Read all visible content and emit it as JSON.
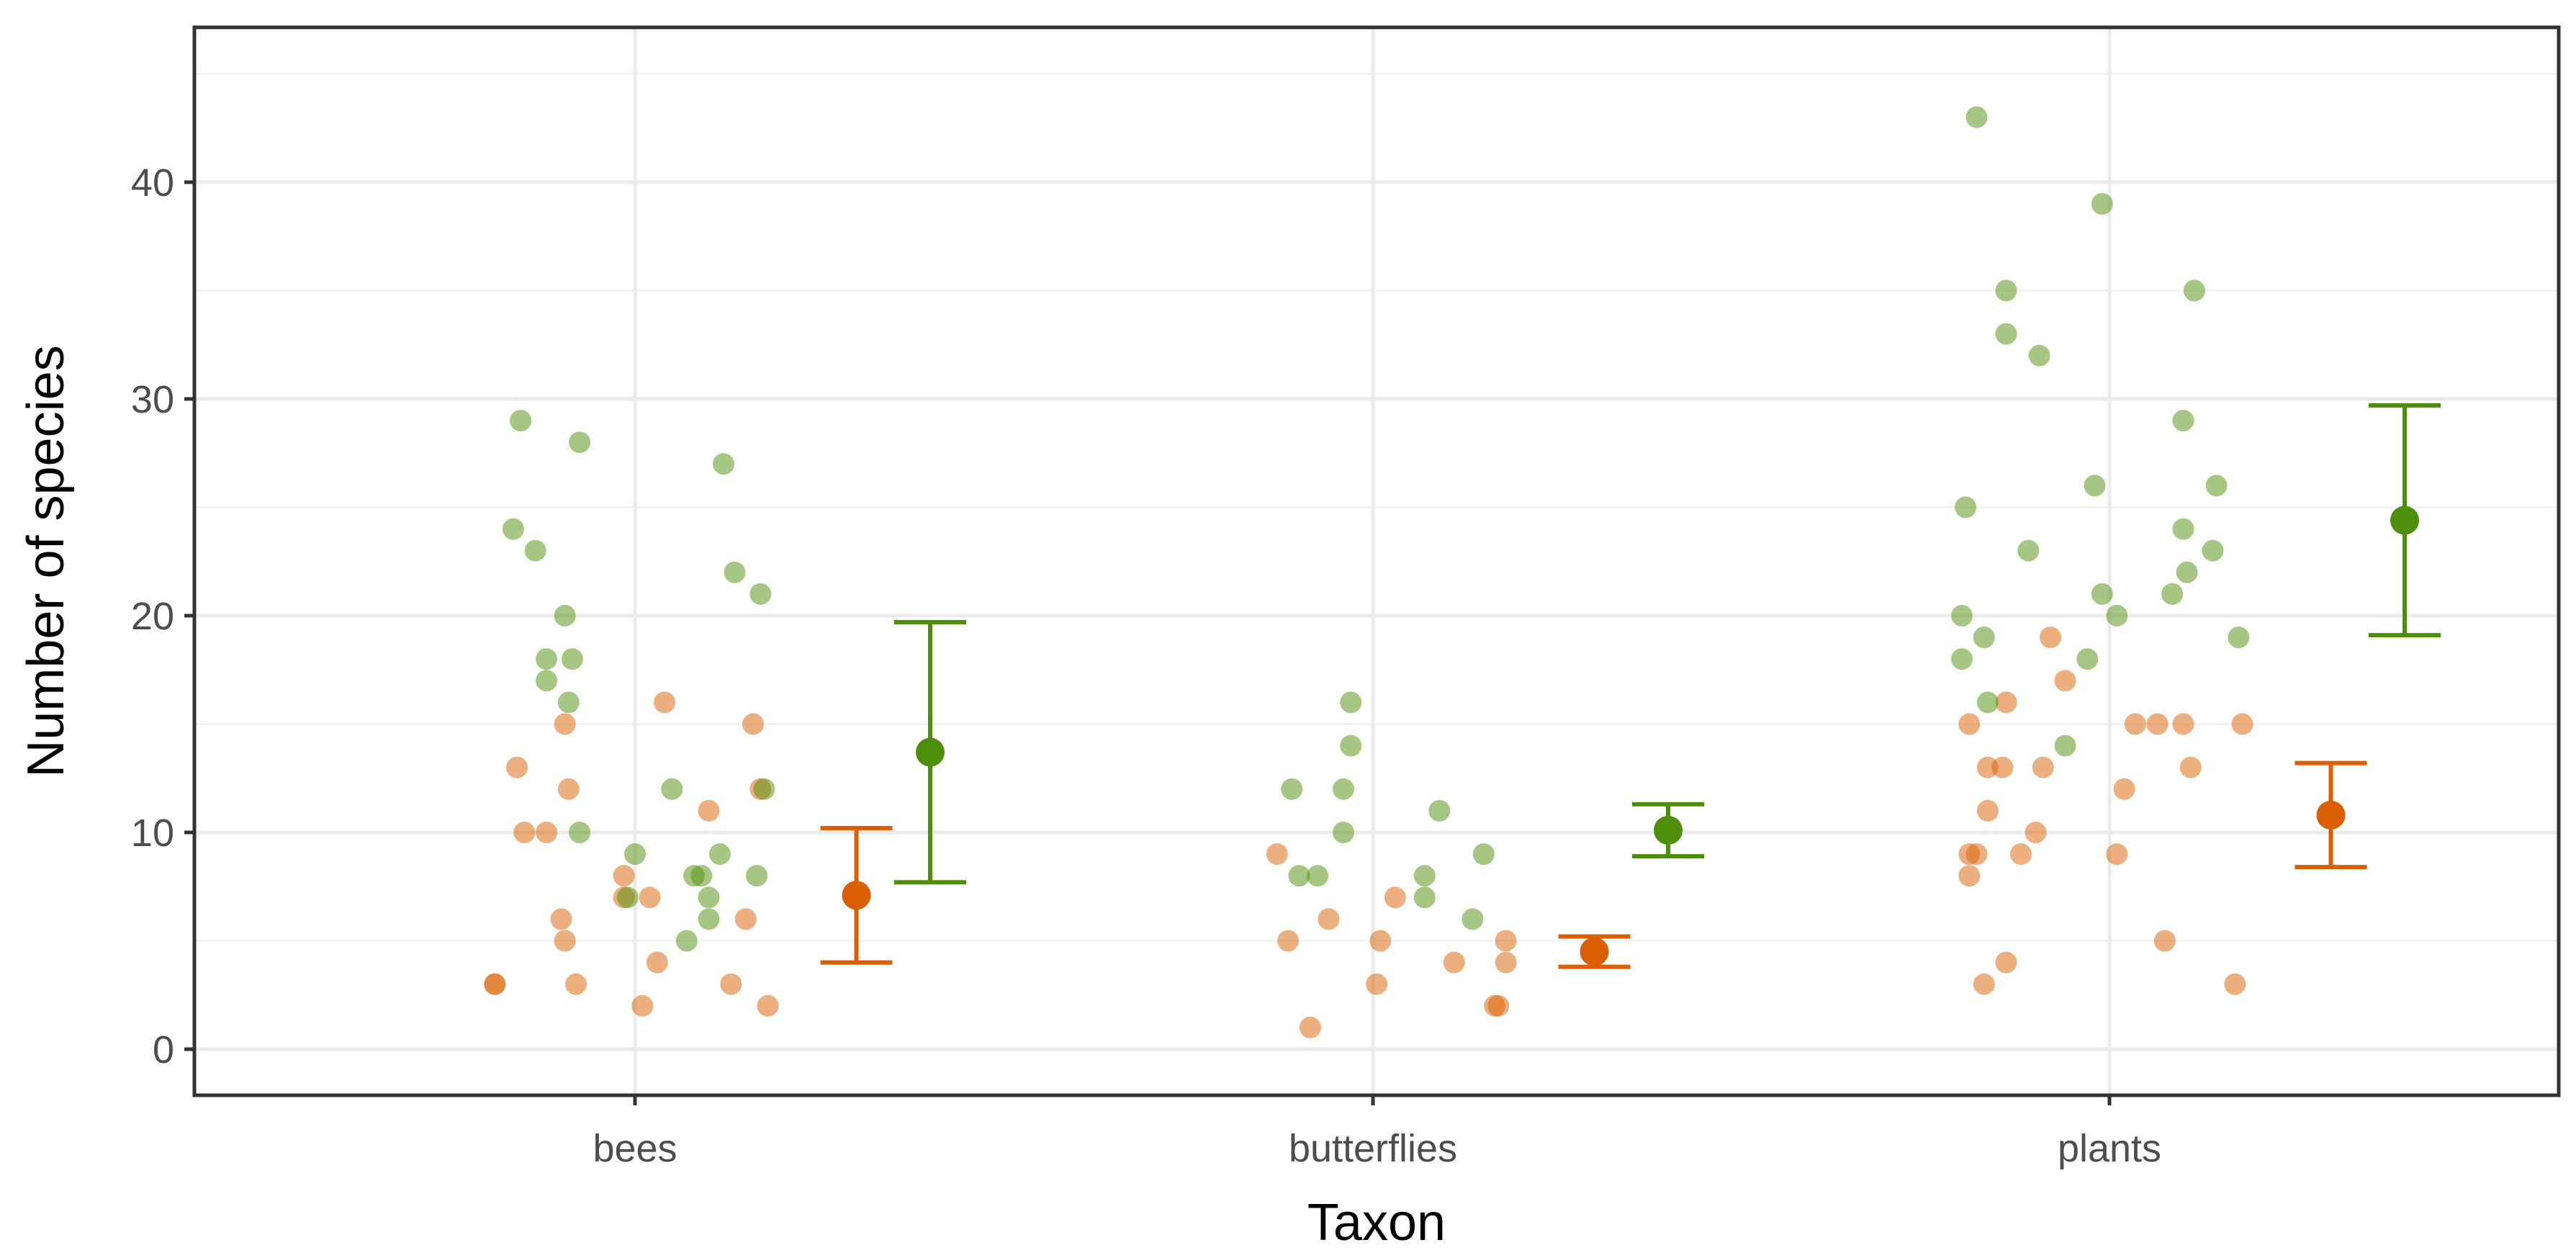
{
  "chart_data": {
    "type": "scatter",
    "title": "",
    "xlabel": "Taxon",
    "ylabel": "Number of species",
    "categories": [
      "bees",
      "butterflies",
      "plants"
    ],
    "ylim": [
      -2.3,
      47
    ],
    "yticks": [
      0,
      10,
      20,
      30,
      40
    ],
    "grid": true,
    "legend": "none",
    "colors": {
      "orange": "#d95f02",
      "green": "#4d8f0a"
    },
    "series": [
      {
        "name": "orange",
        "color": "#d95f02",
        "points": [
          {
            "category": "bees",
            "offset": -0.19,
            "y": 3
          },
          {
            "category": "bees",
            "offset": -0.19,
            "y": 3
          },
          {
            "category": "bees",
            "offset": -0.16,
            "y": 13
          },
          {
            "category": "bees",
            "offset": -0.15,
            "y": 10
          },
          {
            "category": "bees",
            "offset": -0.12,
            "y": 10
          },
          {
            "category": "bees",
            "offset": -0.1,
            "y": 6
          },
          {
            "category": "bees",
            "offset": -0.095,
            "y": 15
          },
          {
            "category": "bees",
            "offset": -0.095,
            "y": 5
          },
          {
            "category": "bees",
            "offset": -0.09,
            "y": 12
          },
          {
            "category": "bees",
            "offset": -0.08,
            "y": 3
          },
          {
            "category": "bees",
            "offset": -0.015,
            "y": 8
          },
          {
            "category": "bees",
            "offset": -0.015,
            "y": 7
          },
          {
            "category": "bees",
            "offset": 0.01,
            "y": 2
          },
          {
            "category": "bees",
            "offset": 0.02,
            "y": 7
          },
          {
            "category": "bees",
            "offset": 0.03,
            "y": 4
          },
          {
            "category": "bees",
            "offset": 0.04,
            "y": 16
          },
          {
            "category": "bees",
            "offset": 0.1,
            "y": 11
          },
          {
            "category": "bees",
            "offset": 0.13,
            "y": 3
          },
          {
            "category": "bees",
            "offset": 0.15,
            "y": 6
          },
          {
            "category": "bees",
            "offset": 0.16,
            "y": 15
          },
          {
            "category": "bees",
            "offset": 0.17,
            "y": 12
          },
          {
            "category": "bees",
            "offset": 0.18,
            "y": 2
          },
          {
            "category": "butterflies",
            "offset": -0.13,
            "y": 9
          },
          {
            "category": "butterflies",
            "offset": -0.115,
            "y": 5
          },
          {
            "category": "butterflies",
            "offset": -0.085,
            "y": 1
          },
          {
            "category": "butterflies",
            "offset": -0.06,
            "y": 6
          },
          {
            "category": "butterflies",
            "offset": 0.005,
            "y": 3
          },
          {
            "category": "butterflies",
            "offset": 0.01,
            "y": 5
          },
          {
            "category": "butterflies",
            "offset": 0.03,
            "y": 7
          },
          {
            "category": "butterflies",
            "offset": 0.11,
            "y": 4
          },
          {
            "category": "butterflies",
            "offset": 0.165,
            "y": 2
          },
          {
            "category": "butterflies",
            "offset": 0.17,
            "y": 2
          },
          {
            "category": "butterflies",
            "offset": 0.18,
            "y": 5
          },
          {
            "category": "butterflies",
            "offset": 0.18,
            "y": 4
          },
          {
            "category": "plants",
            "offset": -0.19,
            "y": 8
          },
          {
            "category": "plants",
            "offset": -0.19,
            "y": 15
          },
          {
            "category": "plants",
            "offset": -0.19,
            "y": 9
          },
          {
            "category": "plants",
            "offset": -0.18,
            "y": 9
          },
          {
            "category": "plants",
            "offset": -0.17,
            "y": 3
          },
          {
            "category": "plants",
            "offset": -0.165,
            "y": 13
          },
          {
            "category": "plants",
            "offset": -0.165,
            "y": 11
          },
          {
            "category": "plants",
            "offset": -0.145,
            "y": 13
          },
          {
            "category": "plants",
            "offset": -0.14,
            "y": 16
          },
          {
            "category": "plants",
            "offset": -0.14,
            "y": 4
          },
          {
            "category": "plants",
            "offset": -0.12,
            "y": 9
          },
          {
            "category": "plants",
            "offset": -0.1,
            "y": 10
          },
          {
            "category": "plants",
            "offset": -0.09,
            "y": 13
          },
          {
            "category": "plants",
            "offset": -0.08,
            "y": 19
          },
          {
            "category": "plants",
            "offset": -0.06,
            "y": 17
          },
          {
            "category": "plants",
            "offset": 0.01,
            "y": 9
          },
          {
            "category": "plants",
            "offset": 0.02,
            "y": 12
          },
          {
            "category": "plants",
            "offset": 0.035,
            "y": 15
          },
          {
            "category": "plants",
            "offset": 0.065,
            "y": 15
          },
          {
            "category": "plants",
            "offset": 0.075,
            "y": 5
          },
          {
            "category": "plants",
            "offset": 0.1,
            "y": 15
          },
          {
            "category": "plants",
            "offset": 0.11,
            "y": 13
          },
          {
            "category": "plants",
            "offset": 0.17,
            "y": 3
          },
          {
            "category": "plants",
            "offset": 0.18,
            "y": 15
          }
        ],
        "means": [
          {
            "category": "bees",
            "offset": 0.3,
            "mean": 7.1,
            "lower": 4,
            "upper": 10.2
          },
          {
            "category": "butterflies",
            "offset": 0.3,
            "mean": 4.5,
            "lower": 3.8,
            "upper": 5.2
          },
          {
            "category": "plants",
            "offset": 0.3,
            "mean": 10.8,
            "lower": 8.4,
            "upper": 13.2
          }
        ]
      },
      {
        "name": "green",
        "color": "#4d8f0a",
        "points": [
          {
            "category": "bees",
            "offset": -0.165,
            "y": 24
          },
          {
            "category": "bees",
            "offset": -0.155,
            "y": 29
          },
          {
            "category": "bees",
            "offset": -0.135,
            "y": 23
          },
          {
            "category": "bees",
            "offset": -0.12,
            "y": 18
          },
          {
            "category": "bees",
            "offset": -0.12,
            "y": 17
          },
          {
            "category": "bees",
            "offset": -0.095,
            "y": 20
          },
          {
            "category": "bees",
            "offset": -0.09,
            "y": 16
          },
          {
            "category": "bees",
            "offset": -0.085,
            "y": 18
          },
          {
            "category": "bees",
            "offset": -0.075,
            "y": 28
          },
          {
            "category": "bees",
            "offset": -0.075,
            "y": 10
          },
          {
            "category": "bees",
            "offset": -0.01,
            "y": 7
          },
          {
            "category": "bees",
            "offset": 0.0,
            "y": 9
          },
          {
            "category": "bees",
            "offset": 0.05,
            "y": 12
          },
          {
            "category": "bees",
            "offset": 0.07,
            "y": 5
          },
          {
            "category": "bees",
            "offset": 0.08,
            "y": 8
          },
          {
            "category": "bees",
            "offset": 0.09,
            "y": 8
          },
          {
            "category": "bees",
            "offset": 0.1,
            "y": 7
          },
          {
            "category": "bees",
            "offset": 0.1,
            "y": 6
          },
          {
            "category": "bees",
            "offset": 0.115,
            "y": 9
          },
          {
            "category": "bees",
            "offset": 0.12,
            "y": 27
          },
          {
            "category": "bees",
            "offset": 0.135,
            "y": 22
          },
          {
            "category": "bees",
            "offset": 0.165,
            "y": 8
          },
          {
            "category": "bees",
            "offset": 0.17,
            "y": 21
          },
          {
            "category": "bees",
            "offset": 0.175,
            "y": 12
          },
          {
            "category": "butterflies",
            "offset": -0.11,
            "y": 12
          },
          {
            "category": "butterflies",
            "offset": -0.1,
            "y": 8
          },
          {
            "category": "butterflies",
            "offset": -0.075,
            "y": 8
          },
          {
            "category": "butterflies",
            "offset": -0.04,
            "y": 12
          },
          {
            "category": "butterflies",
            "offset": -0.04,
            "y": 10
          },
          {
            "category": "butterflies",
            "offset": -0.03,
            "y": 14
          },
          {
            "category": "butterflies",
            "offset": -0.03,
            "y": 16
          },
          {
            "category": "butterflies",
            "offset": 0.07,
            "y": 7
          },
          {
            "category": "butterflies",
            "offset": 0.07,
            "y": 8
          },
          {
            "category": "butterflies",
            "offset": 0.09,
            "y": 11
          },
          {
            "category": "butterflies",
            "offset": 0.135,
            "y": 6
          },
          {
            "category": "butterflies",
            "offset": 0.15,
            "y": 9
          },
          {
            "category": "plants",
            "offset": -0.2,
            "y": 20
          },
          {
            "category": "plants",
            "offset": -0.2,
            "y": 18
          },
          {
            "category": "plants",
            "offset": -0.195,
            "y": 25
          },
          {
            "category": "plants",
            "offset": -0.18,
            "y": 43
          },
          {
            "category": "plants",
            "offset": -0.17,
            "y": 19
          },
          {
            "category": "plants",
            "offset": -0.165,
            "y": 16
          },
          {
            "category": "plants",
            "offset": -0.14,
            "y": 35
          },
          {
            "category": "plants",
            "offset": -0.14,
            "y": 33
          },
          {
            "category": "plants",
            "offset": -0.11,
            "y": 23
          },
          {
            "category": "plants",
            "offset": -0.095,
            "y": 32
          },
          {
            "category": "plants",
            "offset": -0.06,
            "y": 14
          },
          {
            "category": "plants",
            "offset": -0.03,
            "y": 18
          },
          {
            "category": "plants",
            "offset": -0.02,
            "y": 26
          },
          {
            "category": "plants",
            "offset": -0.01,
            "y": 39
          },
          {
            "category": "plants",
            "offset": -0.01,
            "y": 21
          },
          {
            "category": "plants",
            "offset": 0.01,
            "y": 20
          },
          {
            "category": "plants",
            "offset": 0.085,
            "y": 21
          },
          {
            "category": "plants",
            "offset": 0.1,
            "y": 24
          },
          {
            "category": "plants",
            "offset": 0.1,
            "y": 29
          },
          {
            "category": "plants",
            "offset": 0.105,
            "y": 22
          },
          {
            "category": "plants",
            "offset": 0.115,
            "y": 35
          },
          {
            "category": "plants",
            "offset": 0.14,
            "y": 23
          },
          {
            "category": "plants",
            "offset": 0.145,
            "y": 26
          },
          {
            "category": "plants",
            "offset": 0.175,
            "y": 19
          }
        ],
        "means": [
          {
            "category": "bees",
            "offset": 0.4,
            "mean": 13.7,
            "lower": 7.7,
            "upper": 19.7
          },
          {
            "category": "butterflies",
            "offset": 0.4,
            "mean": 10.1,
            "lower": 8.9,
            "upper": 11.3
          },
          {
            "category": "plants",
            "offset": 0.4,
            "mean": 24.4,
            "lower": 19.1,
            "upper": 29.7
          }
        ]
      }
    ]
  }
}
